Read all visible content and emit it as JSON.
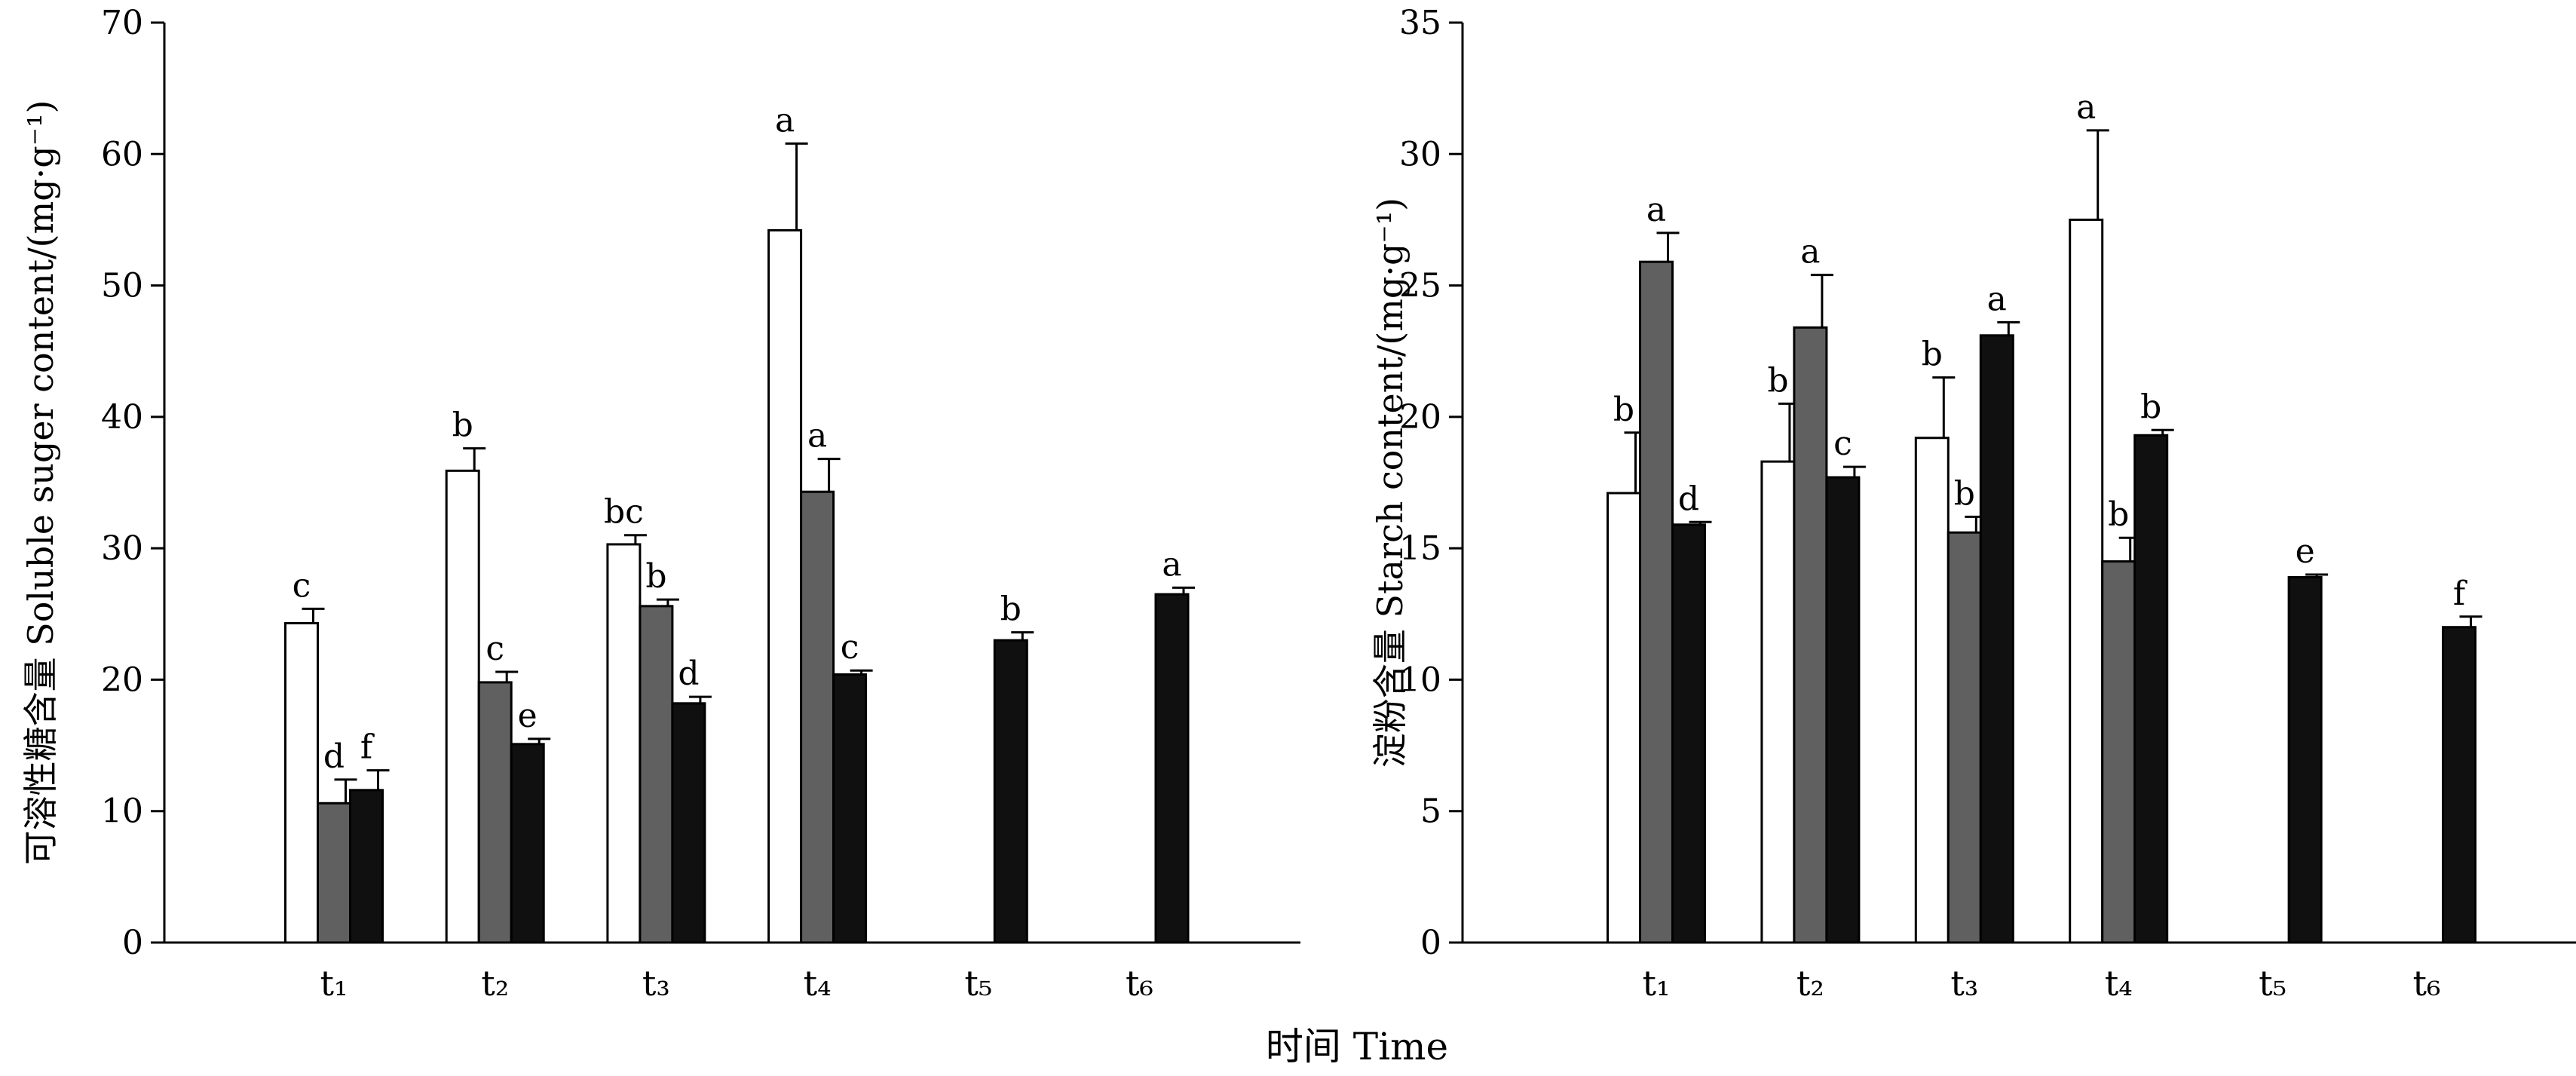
{
  "x_title": "时间  Time",
  "chart_data": [
    {
      "type": "bar",
      "ylabel": "可溶性糖含量  Soluble suger content/(mg·g⁻¹)",
      "ylim": [
        0,
        70
      ],
      "yticks": [
        0,
        10,
        20,
        30,
        40,
        50,
        60,
        70
      ],
      "categories": [
        "t₁",
        "t₂",
        "t₃",
        "t₄",
        "t₅",
        "t₆"
      ],
      "series": [
        {
          "color": "#ffffff",
          "values": [
            24.3,
            35.9,
            30.3,
            54.2,
            null,
            null
          ],
          "errors": [
            1.1,
            1.7,
            0.7,
            6.6,
            null,
            null
          ],
          "labels": [
            "c",
            "b",
            "bc",
            "a",
            null,
            null
          ]
        },
        {
          "color": "#606060",
          "values": [
            10.6,
            19.8,
            25.6,
            34.3,
            null,
            null
          ],
          "errors": [
            1.8,
            0.8,
            0.5,
            2.5,
            null,
            null
          ],
          "labels": [
            "d",
            "c",
            "b",
            "a",
            null,
            null
          ]
        },
        {
          "color": "#101010",
          "values": [
            11.6,
            15.1,
            18.2,
            20.4,
            23.0,
            26.5
          ],
          "errors": [
            1.5,
            0.4,
            0.5,
            0.3,
            0.6,
            0.5
          ],
          "labels": [
            "f",
            "e",
            "d",
            "c",
            "b",
            "a"
          ]
        }
      ]
    },
    {
      "type": "bar",
      "ylabel": "淀粉含量  Starch content/(mg·g⁻¹)",
      "ylim": [
        0,
        35
      ],
      "yticks": [
        0,
        5,
        10,
        15,
        20,
        25,
        30,
        35
      ],
      "categories": [
        "t₁",
        "t₂",
        "t₃",
        "t₄",
        "t₅",
        "t₆"
      ],
      "series": [
        {
          "color": "#ffffff",
          "values": [
            17.1,
            18.3,
            19.2,
            27.5,
            null,
            null
          ],
          "errors": [
            2.3,
            2.2,
            2.3,
            3.4,
            null,
            null
          ],
          "labels": [
            "b",
            "b",
            "b",
            "a",
            null,
            null
          ]
        },
        {
          "color": "#606060",
          "values": [
            25.9,
            23.4,
            15.6,
            14.5,
            null,
            null
          ],
          "errors": [
            1.1,
            2.0,
            0.6,
            0.9,
            null,
            null
          ],
          "labels": [
            "a",
            "a",
            "b",
            "b",
            null,
            null
          ]
        },
        {
          "color": "#101010",
          "values": [
            15.9,
            17.7,
            23.1,
            19.3,
            13.9,
            12.0
          ],
          "errors": [
            0.1,
            0.4,
            0.5,
            0.2,
            0.1,
            0.4
          ],
          "labels": [
            "d",
            "c",
            "a",
            "b",
            "e",
            "f"
          ]
        }
      ]
    }
  ]
}
